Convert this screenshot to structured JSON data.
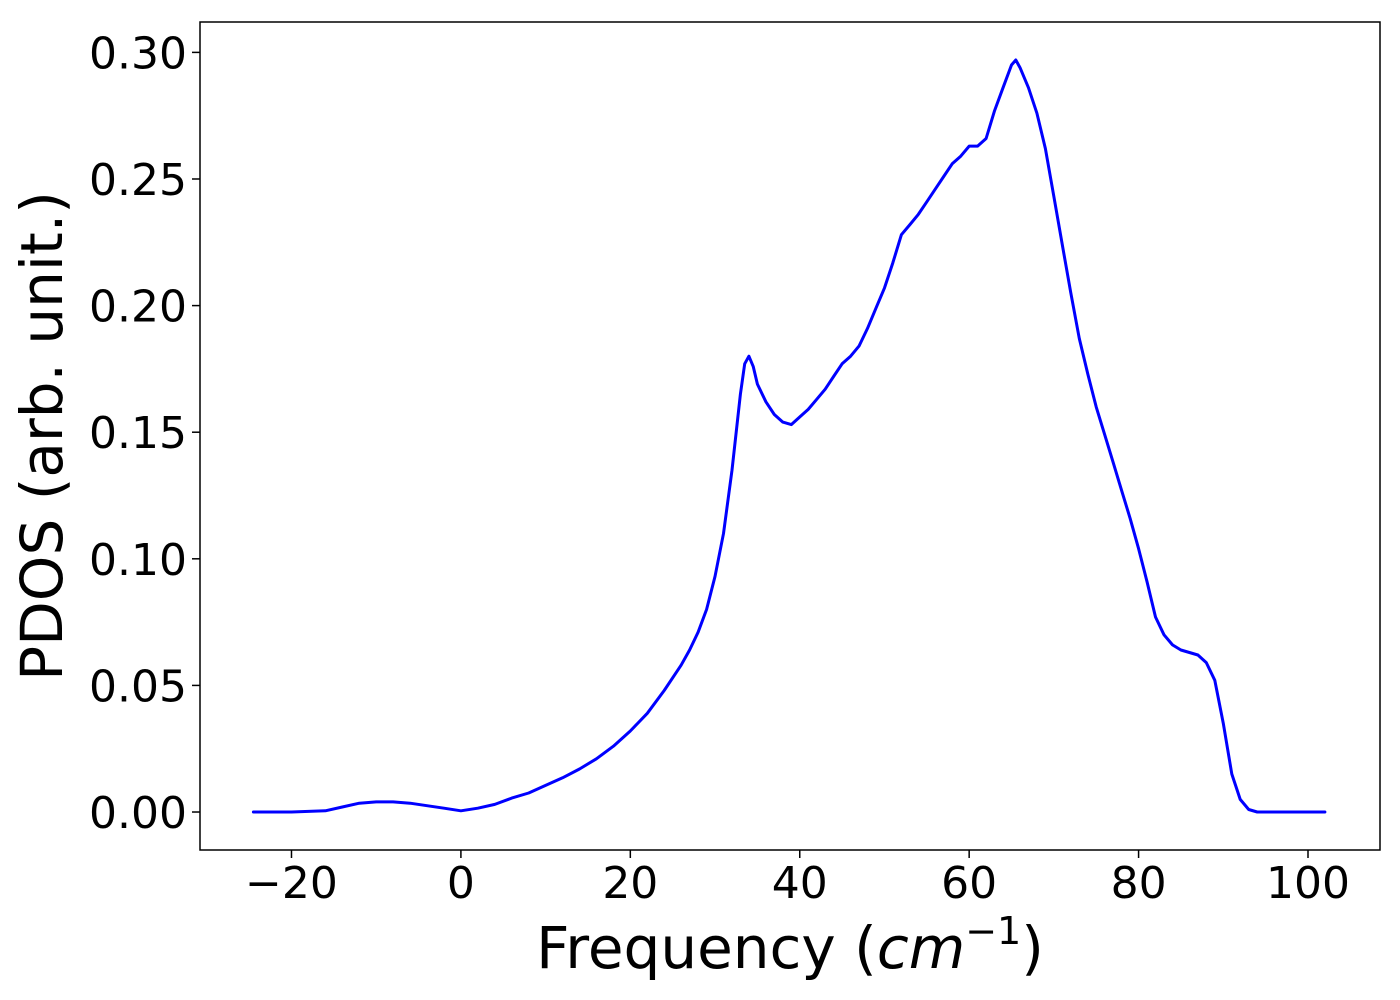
{
  "chart_data": {
    "type": "line",
    "title": "",
    "xlabel": "Frequency (",
    "xlabel_unit": "cm",
    "xlabel_exp": "−1",
    "xlabel_close": ")",
    "ylabel": "PDOS (arb. unit.)",
    "xlim": [
      -30.8,
      108.5
    ],
    "ylim": [
      -0.015,
      0.312
    ],
    "xticks": [
      -20,
      0,
      20,
      40,
      60,
      80,
      100
    ],
    "xtick_labels": [
      "−20",
      "0",
      "20",
      "40",
      "60",
      "80",
      "100"
    ],
    "yticks": [
      0.0,
      0.05,
      0.1,
      0.15,
      0.2,
      0.25,
      0.3
    ],
    "ytick_labels": [
      "0.00",
      "0.05",
      "0.10",
      "0.15",
      "0.20",
      "0.25",
      "0.30"
    ],
    "grid": false,
    "series": [
      {
        "color": "#0000ff",
        "x": [
          -24.5,
          -20,
          -16,
          -14,
          -12,
          -10,
          -8,
          -6,
          -4,
          -2,
          0,
          2,
          4,
          6,
          8,
          10,
          12,
          14,
          16,
          18,
          20,
          22,
          24,
          26,
          27,
          28,
          29,
          30,
          31,
          32,
          33,
          33.5,
          34,
          34.5,
          35,
          36,
          37,
          38,
          39,
          40,
          41,
          42,
          43,
          44,
          45,
          46,
          47,
          48,
          49,
          50,
          51,
          52,
          53,
          54,
          55,
          56,
          57,
          58,
          59,
          60,
          61,
          62,
          63,
          64,
          65,
          65.5,
          66,
          67,
          68,
          69,
          70,
          71,
          72,
          73,
          74,
          75,
          76,
          77,
          78,
          79,
          80,
          81,
          82,
          83,
          84,
          85,
          86,
          87,
          88,
          89,
          90,
          91,
          92,
          93,
          94,
          95,
          96,
          100,
          102
        ],
        "y": [
          0.0,
          0.0,
          0.0005,
          0.002,
          0.0035,
          0.004,
          0.004,
          0.0035,
          0.0025,
          0.0015,
          0.0005,
          0.0015,
          0.003,
          0.0055,
          0.0075,
          0.0105,
          0.0135,
          0.017,
          0.021,
          0.026,
          0.032,
          0.039,
          0.048,
          0.058,
          0.064,
          0.071,
          0.08,
          0.093,
          0.11,
          0.135,
          0.165,
          0.177,
          0.18,
          0.176,
          0.169,
          0.162,
          0.157,
          0.154,
          0.153,
          0.156,
          0.159,
          0.163,
          0.167,
          0.172,
          0.177,
          0.18,
          0.184,
          0.191,
          0.199,
          0.207,
          0.217,
          0.228,
          0.232,
          0.236,
          0.241,
          0.246,
          0.251,
          0.256,
          0.259,
          0.263,
          0.263,
          0.266,
          0.277,
          0.286,
          0.295,
          0.297,
          0.294,
          0.286,
          0.276,
          0.262,
          0.243,
          0.224,
          0.205,
          0.187,
          0.173,
          0.16,
          0.149,
          0.138,
          0.127,
          0.116,
          0.104,
          0.091,
          0.077,
          0.07,
          0.066,
          0.064,
          0.063,
          0.062,
          0.059,
          0.052,
          0.035,
          0.015,
          0.005,
          0.001,
          0.0,
          0.0,
          0.0,
          0.0,
          0.0
        ]
      }
    ]
  }
}
